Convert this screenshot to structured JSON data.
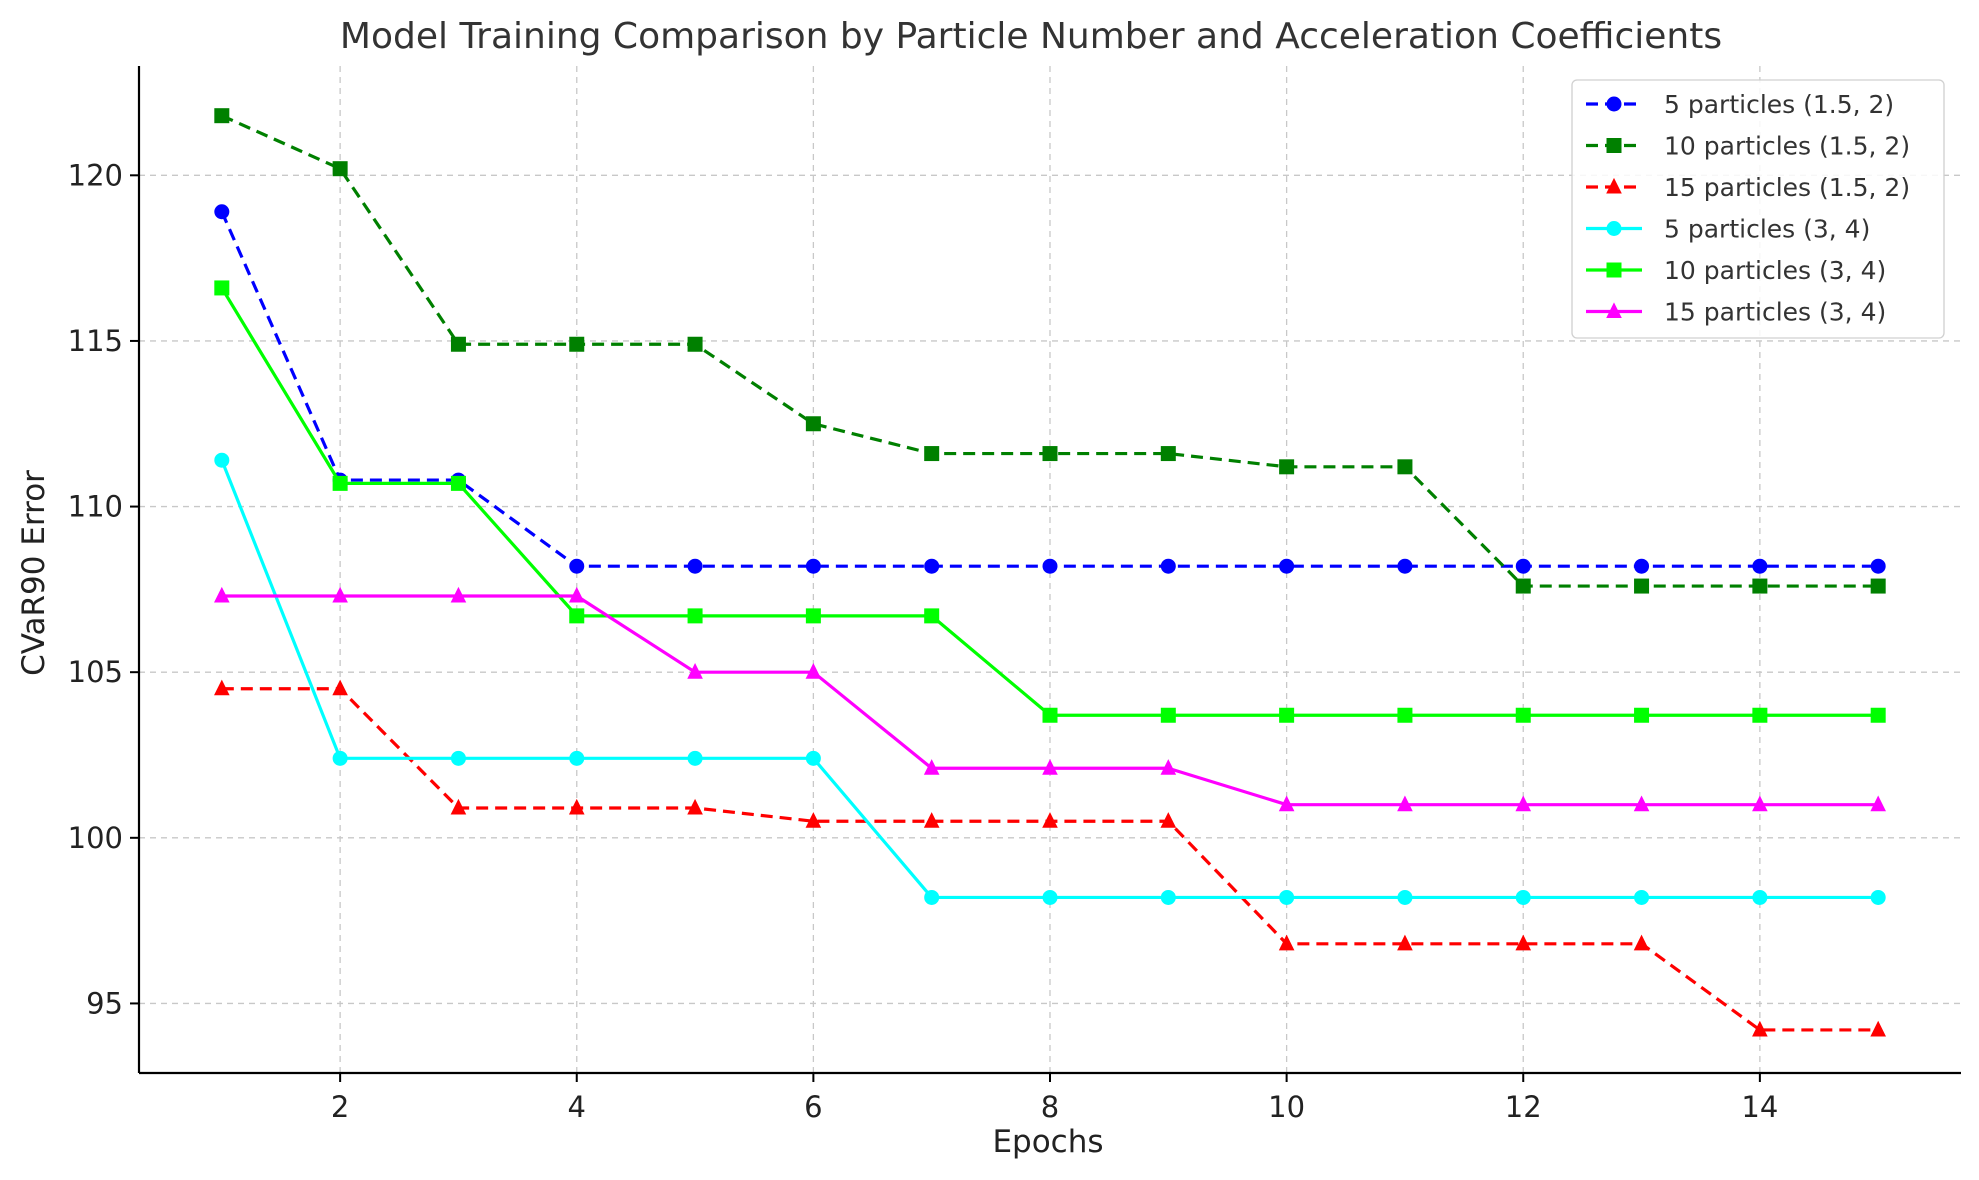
{
  "chart_data": {
    "type": "line",
    "title": "Model Training Comparison by Particle Number and Acceleration Coefficients",
    "xlabel": "Epochs",
    "ylabel": "CVaR90 Error",
    "xlim": [
      0.3,
      15.7
    ],
    "ylim": [
      92.9,
      123.3
    ],
    "x_ticks": [
      2,
      4,
      6,
      8,
      10,
      12,
      14
    ],
    "y_ticks": [
      95,
      100,
      105,
      110,
      115,
      120
    ],
    "grid": true,
    "legend_position": "top-right",
    "x": [
      1,
      2,
      3,
      4,
      5,
      6,
      7,
      8,
      9,
      10,
      11,
      12,
      13,
      14,
      15
    ],
    "series": [
      {
        "name": "5 particles (1.5, 2)",
        "color": "#0000ff",
        "line_style": "dashed",
        "marker": "circle",
        "values": [
          118.9,
          110.8,
          110.8,
          108.2,
          108.2,
          108.2,
          108.2,
          108.2,
          108.2,
          108.2,
          108.2,
          108.2,
          108.2,
          108.2,
          108.2
        ]
      },
      {
        "name": "10 particles (1.5, 2)",
        "color": "#008000",
        "line_style": "dashed",
        "marker": "square",
        "values": [
          121.8,
          120.2,
          114.9,
          114.9,
          114.9,
          112.5,
          111.6,
          111.6,
          111.6,
          111.2,
          111.2,
          107.6,
          107.6,
          107.6,
          107.6
        ]
      },
      {
        "name": "15 particles (1.5, 2)",
        "color": "#ff0000",
        "line_style": "dashed",
        "marker": "triangle",
        "values": [
          104.5,
          104.5,
          100.9,
          100.9,
          100.9,
          100.5,
          100.5,
          100.5,
          100.5,
          96.8,
          96.8,
          96.8,
          96.8,
          94.2,
          94.2
        ]
      },
      {
        "name": "5 particles (3, 4)",
        "color": "#00ffff",
        "line_style": "solid",
        "marker": "circle",
        "values": [
          111.4,
          102.4,
          102.4,
          102.4,
          102.4,
          102.4,
          98.2,
          98.2,
          98.2,
          98.2,
          98.2,
          98.2,
          98.2,
          98.2,
          98.2
        ]
      },
      {
        "name": "10 particles (3, 4)",
        "color": "#00ff00",
        "line_style": "solid",
        "marker": "square",
        "values": [
          116.6,
          110.7,
          110.7,
          106.7,
          106.7,
          106.7,
          106.7,
          103.7,
          103.7,
          103.7,
          103.7,
          103.7,
          103.7,
          103.7,
          103.7
        ]
      },
      {
        "name": "15 particles (3, 4)",
        "color": "#ff00ff",
        "line_style": "solid",
        "marker": "triangle",
        "values": [
          107.3,
          107.3,
          107.3,
          107.3,
          105.0,
          105.0,
          102.1,
          102.1,
          102.1,
          101.0,
          101.0,
          101.0,
          101.0,
          101.0,
          101.0
        ]
      }
    ]
  }
}
